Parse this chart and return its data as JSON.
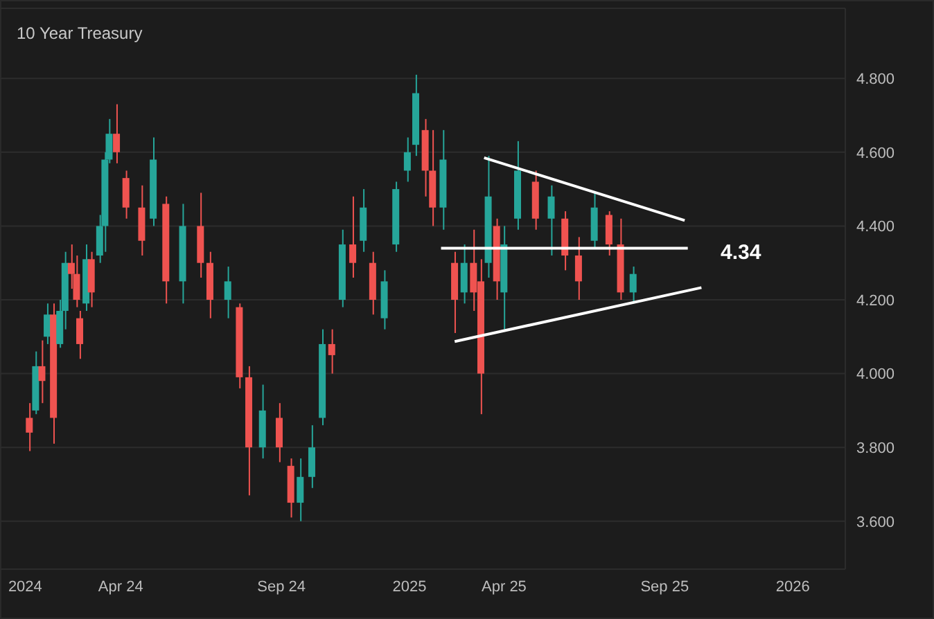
{
  "chart_data": {
    "type": "candlestick",
    "title": "10 Year Treasury",
    "x": [
      "2024-01-05",
      "2024-01-11",
      "2024-01-17",
      "2024-01-22",
      "2024-01-28",
      "2024-02-03",
      "2024-02-08",
      "2024-02-14",
      "2024-02-19",
      "2024-02-22",
      "2024-02-28",
      "2024-03-04",
      "2024-03-12",
      "2024-03-17",
      "2024-03-21",
      "2024-03-28",
      "2024-04-06",
      "2024-04-21",
      "2024-05-02",
      "2024-05-14",
      "2024-05-30",
      "2024-06-16",
      "2024-06-25",
      "2024-07-12",
      "2024-07-23",
      "2024-08-01",
      "2024-08-14",
      "2024-08-30",
      "2024-09-10",
      "2024-09-19",
      "2024-09-30",
      "2024-10-10",
      "2024-10-19",
      "2024-10-29",
      "2024-11-08",
      "2024-11-18",
      "2024-11-27",
      "2024-12-08",
      "2024-12-19",
      "2024-12-30",
      "2025-01-07",
      "2025-01-16",
      "2025-01-23",
      "2025-02-02",
      "2025-02-13",
      "2025-02-22",
      "2025-03-03",
      "2025-03-10",
      "2025-03-17",
      "2025-03-25",
      "2025-04-01",
      "2025-04-14",
      "2025-05-01",
      "2025-05-16",
      "2025-05-29",
      "2025-06-11",
      "2025-06-26",
      "2025-07-10",
      "2025-07-21",
      "2025-08-02"
    ],
    "ohlc": [
      [
        3.88,
        3.92,
        3.79,
        3.84
      ],
      [
        3.9,
        4.06,
        3.89,
        4.02
      ],
      [
        4.02,
        4.09,
        3.92,
        3.98
      ],
      [
        4.1,
        4.19,
        4.08,
        4.16
      ],
      [
        4.16,
        4.19,
        3.81,
        3.88
      ],
      [
        4.08,
        4.2,
        4.07,
        4.17
      ],
      [
        4.17,
        4.33,
        4.12,
        4.3
      ],
      [
        4.3,
        4.35,
        4.23,
        4.27
      ],
      [
        4.27,
        4.32,
        4.18,
        4.2
      ],
      [
        4.15,
        4.17,
        4.04,
        4.08
      ],
      [
        4.19,
        4.35,
        4.17,
        4.31
      ],
      [
        4.31,
        4.33,
        4.18,
        4.22
      ],
      [
        4.32,
        4.43,
        4.3,
        4.4
      ],
      [
        4.4,
        4.6,
        4.33,
        4.58
      ],
      [
        4.58,
        4.69,
        4.57,
        4.65
      ],
      [
        4.65,
        4.73,
        4.57,
        4.6
      ],
      [
        4.53,
        4.55,
        4.42,
        4.45
      ],
      [
        4.45,
        4.51,
        4.32,
        4.36
      ],
      [
        4.42,
        4.64,
        4.4,
        4.58
      ],
      [
        4.46,
        4.48,
        4.19,
        4.25
      ],
      [
        4.25,
        4.46,
        4.19,
        4.4
      ],
      [
        4.4,
        4.49,
        4.26,
        4.3
      ],
      [
        4.3,
        4.33,
        4.15,
        4.2
      ],
      [
        4.2,
        4.29,
        4.15,
        4.25
      ],
      [
        4.18,
        4.19,
        3.96,
        3.99
      ],
      [
        3.99,
        4.02,
        3.67,
        3.8
      ],
      [
        3.8,
        3.97,
        3.77,
        3.9
      ],
      [
        3.88,
        3.92,
        3.76,
        3.8
      ],
      [
        3.75,
        3.77,
        3.61,
        3.65
      ],
      [
        3.65,
        3.77,
        3.6,
        3.72
      ],
      [
        3.72,
        3.86,
        3.69,
        3.8
      ],
      [
        3.88,
        4.12,
        3.86,
        4.08
      ],
      [
        4.08,
        4.12,
        4.0,
        4.05
      ],
      [
        4.2,
        4.39,
        4.18,
        4.35
      ],
      [
        4.35,
        4.48,
        4.26,
        4.3
      ],
      [
        4.36,
        4.5,
        4.33,
        4.45
      ],
      [
        4.3,
        4.33,
        4.16,
        4.2
      ],
      [
        4.15,
        4.28,
        4.12,
        4.25
      ],
      [
        4.35,
        4.52,
        4.33,
        4.5
      ],
      [
        4.55,
        4.64,
        4.52,
        4.6
      ],
      [
        4.62,
        4.81,
        4.59,
        4.76
      ],
      [
        4.66,
        4.69,
        4.48,
        4.55
      ],
      [
        4.55,
        4.66,
        4.4,
        4.45
      ],
      [
        4.45,
        4.66,
        4.39,
        4.58
      ],
      [
        4.3,
        4.33,
        4.11,
        4.2
      ],
      [
        4.22,
        4.35,
        4.19,
        4.3
      ],
      [
        4.3,
        4.39,
        4.17,
        4.22
      ],
      [
        4.25,
        4.31,
        3.89,
        4.0
      ],
      [
        4.3,
        4.59,
        4.26,
        4.48
      ],
      [
        4.4,
        4.42,
        4.2,
        4.25
      ],
      [
        4.22,
        4.4,
        4.12,
        4.35
      ],
      [
        4.42,
        4.63,
        4.39,
        4.55
      ],
      [
        4.52,
        4.55,
        4.39,
        4.42
      ],
      [
        4.42,
        4.51,
        4.32,
        4.48
      ],
      [
        4.42,
        4.44,
        4.28,
        4.32
      ],
      [
        4.32,
        4.37,
        4.2,
        4.25
      ],
      [
        4.36,
        4.49,
        4.34,
        4.45
      ],
      [
        4.43,
        4.44,
        4.32,
        4.35
      ],
      [
        4.35,
        4.42,
        4.2,
        4.22
      ],
      [
        4.22,
        4.29,
        4.19,
        4.27
      ]
    ],
    "colors": [
      "#ef5350",
      "#26a69a",
      "#ef5350",
      "#26a69a",
      "#ef5350",
      "#26a69a",
      "#26a69a",
      "#ef5350",
      "#ef5350",
      "#ef5350",
      "#26a69a",
      "#ef5350",
      "#26a69a",
      "#26a69a",
      "#26a69a",
      "#ef5350",
      "#ef5350",
      "#ef5350",
      "#26a69a",
      "#ef5350",
      "#26a69a",
      "#ef5350",
      "#ef5350",
      "#26a69a",
      "#ef5350",
      "#ef5350",
      "#26a69a",
      "#ef5350",
      "#ef5350",
      "#26a69a",
      "#26a69a",
      "#26a69a",
      "#ef5350",
      "#26a69a",
      "#ef5350",
      "#26a69a",
      "#ef5350",
      "#26a69a",
      "#26a69a",
      "#26a69a",
      "#26a69a",
      "#ef5350",
      "#ef5350",
      "#26a69a",
      "#ef5350",
      "#26a69a",
      "#ef5350",
      "#ef5350",
      "#26a69a",
      "#ef5350",
      "#26a69a",
      "#26a69a",
      "#ef5350",
      "#26a69a",
      "#ef5350",
      "#ef5350",
      "#26a69a",
      "#ef5350",
      "#ef5350",
      "#26a69a"
    ],
    "series": [
      {
        "type": "line",
        "color": "#ffffff",
        "x": [
          "2025-03-13",
          "2025-09-20"
        ],
        "values": [
          4.585,
          4.415
        ]
      },
      {
        "type": "line",
        "color": "#ffffff",
        "x": [
          "2025-02-13",
          "2025-10-06"
        ],
        "values": [
          4.087,
          4.233
        ]
      },
      {
        "type": "line",
        "color": "#ffffff",
        "x": [
          "2025-01-31",
          "2025-09-23"
        ],
        "values": [
          4.34,
          4.34
        ]
      }
    ],
    "annotations": [
      "4.34"
    ],
    "xlim": [
      "2023-12-08",
      "2026-02-20"
    ],
    "xticks": [
      {
        "value": "2024-01-01",
        "label": "2024"
      },
      {
        "value": "2024-04-01",
        "label": "Apr 24"
      },
      {
        "value": "2024-09-01",
        "label": "Sep 24"
      },
      {
        "value": "2025-01-01",
        "label": "2025"
      },
      {
        "value": "2025-04-01",
        "label": "Apr 25"
      },
      {
        "value": "2025-09-01",
        "label": "Sep 25"
      },
      {
        "value": "2026-01-01",
        "label": "2026"
      }
    ],
    "ylim": [
      3.47,
      4.99
    ],
    "yticks": [
      {
        "value": 3.6,
        "label": "3.600"
      },
      {
        "value": 3.8,
        "label": "3.800"
      },
      {
        "value": 4.0,
        "label": "4.000"
      },
      {
        "value": 4.2,
        "label": "4.200"
      },
      {
        "value": 4.4,
        "label": "4.400"
      },
      {
        "value": 4.6,
        "label": "4.600"
      },
      {
        "value": 4.8,
        "label": "4.800"
      }
    ],
    "grid": "y"
  }
}
